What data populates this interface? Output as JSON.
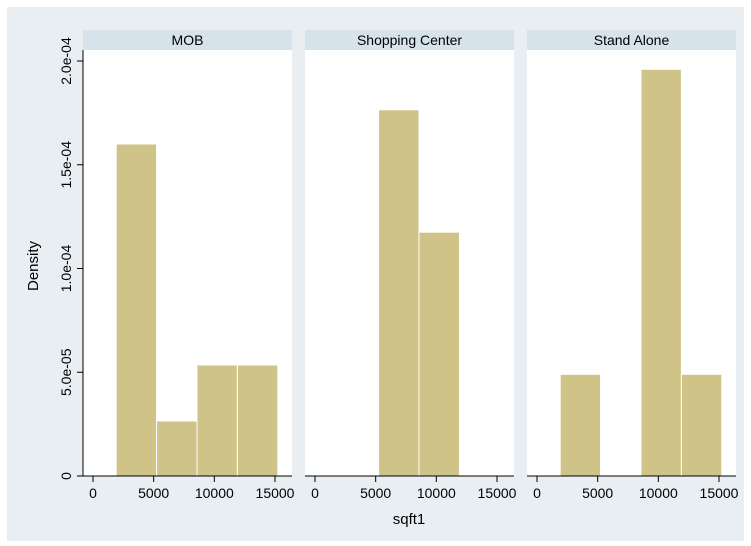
{
  "chart_data": {
    "type": "bar",
    "subtype": "histogram",
    "xlabel": "sqft1",
    "ylabel": "Density",
    "xlim": [
      -500,
      16500
    ],
    "ylim": [
      0,
      0.000204
    ],
    "xticks": [
      0,
      5000,
      10000,
      15000
    ],
    "xtick_labels": [
      "0",
      "5000",
      "10000",
      "15000"
    ],
    "yticks": [
      0,
      5e-05,
      0.0001,
      0.00015,
      0.0002
    ],
    "ytick_labels": [
      "0",
      "5.0e-05",
      "1.0e-04",
      "1.5e-04",
      "2.0e-04"
    ],
    "grid": false,
    "legend": "none",
    "colors": {
      "outer_background": "#e8eef2",
      "panel_background": "#ffffff",
      "strip_background": "#d7e3ea",
      "bar_fill": "#cfc387",
      "bar_edge": "#ffffff"
    },
    "panels": [
      {
        "name": "MOB",
        "bins": [
          {
            "x0": 1910,
            "x1": 5240,
            "density": 0.00016
          },
          {
            "x0": 5240,
            "x1": 8570,
            "density": 2.65e-05
          },
          {
            "x0": 8570,
            "x1": 11900,
            "density": 5.35e-05
          },
          {
            "x0": 11900,
            "x1": 15230,
            "density": 5.35e-05
          }
        ]
      },
      {
        "name": "Shopping Center",
        "bins": [
          {
            "x0": 5240,
            "x1": 8570,
            "density": 0.0001765
          },
          {
            "x0": 8570,
            "x1": 11900,
            "density": 0.0001175
          }
        ]
      },
      {
        "name": "Stand Alone",
        "bins": [
          {
            "x0": 1910,
            "x1": 5240,
            "density": 4.9e-05
          },
          {
            "x0": 8570,
            "x1": 11900,
            "density": 0.000196
          },
          {
            "x0": 11900,
            "x1": 15230,
            "density": 4.9e-05
          }
        ]
      }
    ]
  }
}
